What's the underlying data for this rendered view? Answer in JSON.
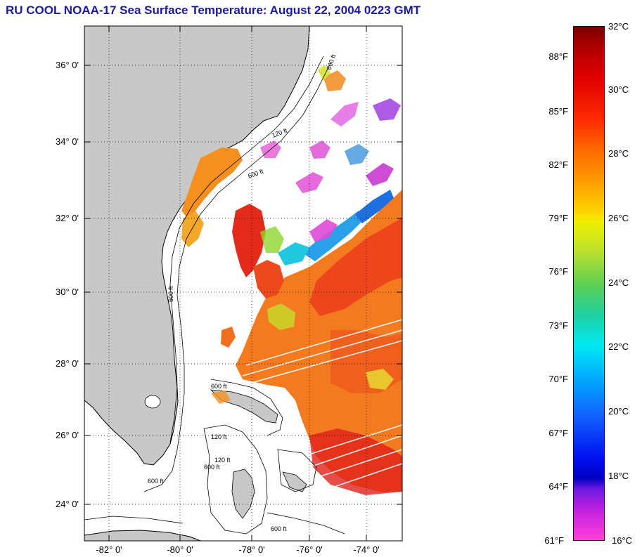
{
  "title": "RU COOL  NOAA-17  Sea Surface Temperature:  August 22, 2004 0223 GMT",
  "map": {
    "lat_labels": [
      "36° 0'",
      "34° 0'",
      "32° 0'",
      "30° 0'",
      "28° 0'",
      "26° 0'",
      "24° 0'"
    ],
    "lon_labels": [
      "-82° 0'",
      "-80° 0'",
      "-78° 0'",
      "-76° 0'",
      "-74° 0'"
    ],
    "contour_labels": [
      "600 ft",
      "120 ft",
      "600 ft",
      "600 ft",
      "600 ft",
      "120 ft",
      "600 ft",
      "600 ft",
      "120 ft",
      "600 ft"
    ],
    "colors": {
      "land": "#c8c8c8",
      "ocean_nodata": "#ffffff"
    }
  },
  "colorbar": {
    "fahrenheit_labels": [
      "88°F",
      "85°F",
      "82°F",
      "79°F",
      "76°F",
      "73°F",
      "70°F",
      "67°F",
      "64°F",
      "61°F"
    ],
    "celsius_labels": [
      "32°C",
      "30°C",
      "28°C",
      "26°C",
      "24°C",
      "22°C",
      "20°C",
      "18°C",
      "16°C"
    ]
  }
}
